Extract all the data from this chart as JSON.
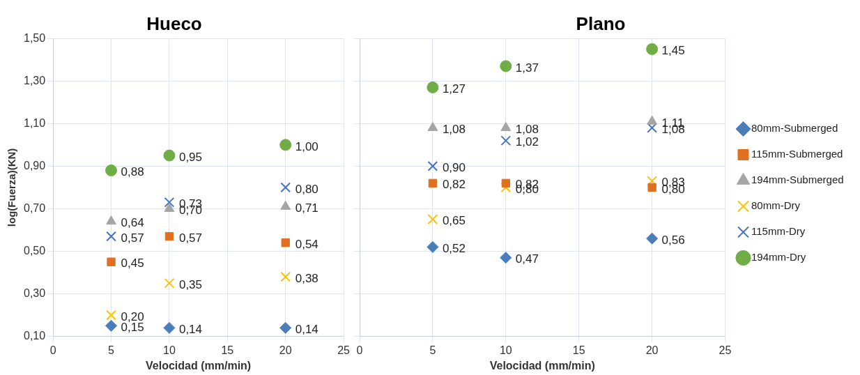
{
  "chart_data": [
    {
      "type": "scatter",
      "title": "Hueco",
      "xlabel": "Velocidad (mm/min)",
      "ylabel": "log(Fuerza)(KN)",
      "xlim": [
        0,
        25
      ],
      "xticks": [
        0,
        5,
        10,
        15,
        20,
        25
      ],
      "ylim": [
        0.1,
        1.5
      ],
      "yticks": [
        {
          "value": 0.1,
          "label": "0,10"
        },
        {
          "value": 0.3,
          "label": "0,30"
        },
        {
          "value": 0.5,
          "label": "0,50"
        },
        {
          "value": 0.7,
          "label": "0,70"
        },
        {
          "value": 0.9,
          "label": "0,90"
        },
        {
          "value": 1.1,
          "label": "1,10"
        },
        {
          "value": 1.3,
          "label": "1,30"
        },
        {
          "value": 1.5,
          "label": "1,50"
        }
      ],
      "grid": true,
      "legend": false,
      "x": [
        5,
        10,
        20
      ],
      "series": [
        {
          "color": "#4a7ebb",
          "marker": "diamond",
          "values": [
            0.15,
            0.14,
            0.14
          ],
          "value_labels": [
            "0,15",
            "0,14",
            "0,14"
          ]
        },
        {
          "color": "#e07020",
          "marker": "square",
          "values": [
            0.45,
            0.57,
            0.54
          ],
          "value_labels": [
            "0,45",
            "0,57",
            "0,54"
          ]
        },
        {
          "color": "#a5a5a5",
          "marker": "triangle",
          "values": [
            0.64,
            0.7,
            0.71
          ],
          "value_labels": [
            "0,64",
            "0,70",
            "0,71"
          ]
        },
        {
          "color": "#ffc000",
          "marker": "cross",
          "values": [
            0.2,
            0.35,
            0.38
          ],
          "value_labels": [
            "0,20",
            "0,35",
            "0,38"
          ]
        },
        {
          "color": "#4472c4",
          "marker": "cross",
          "values": [
            0.57,
            0.73,
            0.8
          ],
          "value_labels": [
            "0,57",
            "0,73",
            "0,80"
          ]
        },
        {
          "color": "#70ad47",
          "marker": "circle",
          "values": [
            0.88,
            0.95,
            1.0
          ],
          "value_labels": [
            "0,88",
            "0,95",
            "1,00"
          ]
        }
      ]
    },
    {
      "type": "scatter",
      "title": "Plano",
      "xlabel": "Velocidad (mm/min)",
      "xlim": [
        0,
        25
      ],
      "xticks": [
        0,
        5,
        10,
        15,
        20,
        25
      ],
      "ylim": [
        0.1,
        1.5
      ],
      "yticks": [
        0.1,
        0.3,
        0.5,
        0.7,
        0.9,
        1.1,
        1.3,
        1.5
      ],
      "tick_labels": "x",
      "grid": true,
      "legend": "right",
      "x": [
        5,
        10,
        20
      ],
      "series": [
        {
          "name": "80mm-Submerged",
          "color": "#4a7ebb",
          "marker": "diamond",
          "values": [
            0.52,
            0.47,
            0.56
          ],
          "value_labels": [
            "0,52",
            "0,47",
            "0,56"
          ]
        },
        {
          "name": "115mm-Submerged",
          "color": "#e07020",
          "marker": "square",
          "values": [
            0.82,
            0.82,
            0.8
          ],
          "value_labels": [
            "0,82",
            "0,82",
            "0,80"
          ]
        },
        {
          "name": "194mm-Submerged",
          "color": "#a5a5a5",
          "marker": "triangle",
          "values": [
            1.08,
            1.08,
            1.11
          ],
          "value_labels": [
            "1,08",
            "1,08",
            "1,11"
          ]
        },
        {
          "name": "80mm-Dry",
          "color": "#ffc000",
          "marker": "cross",
          "values": [
            0.65,
            0.8,
            0.83
          ],
          "value_labels": [
            "0,65",
            "0,80",
            "0,83"
          ]
        },
        {
          "name": "115mm-Dry",
          "color": "#4472c4",
          "marker": "cross",
          "values": [
            0.9,
            1.02,
            1.08
          ],
          "value_labels": [
            "0,90",
            "1,02",
            "1,08"
          ]
        },
        {
          "name": "194mm-Dry",
          "color": "#70ad47",
          "marker": "circle",
          "values": [
            1.27,
            1.37,
            1.45
          ],
          "value_labels": [
            "1,27",
            "1,37",
            "1,45"
          ]
        }
      ]
    }
  ]
}
